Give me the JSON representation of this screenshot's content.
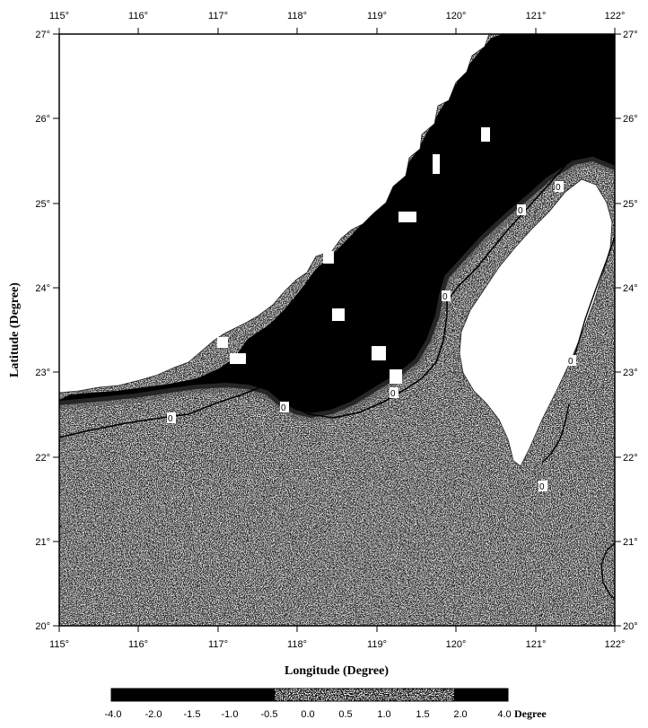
{
  "map": {
    "x_axis": {
      "title": "Longitude (Degree)",
      "ticks": [
        "115°",
        "116°",
        "117°",
        "118°",
        "119°",
        "120°",
        "121°",
        "122°"
      ]
    },
    "y_axis": {
      "title": "Latitude (Degree)",
      "ticks": [
        "20°",
        "21°",
        "22°",
        "23°",
        "24°",
        "25°",
        "26°",
        "27°"
      ]
    },
    "contour_labels": [
      "0",
      "0",
      "0",
      "0",
      "0",
      "0",
      "0",
      "0"
    ],
    "shading": "noise raster: dark (negative) over coastal China shelf, light speckle in South China Sea",
    "colors": {
      "dark": "#000000",
      "light": "#ffffff",
      "noise": "#7a7a7a"
    }
  },
  "colorbar": {
    "labels": [
      "-4.0",
      "-2.0",
      "-1.5",
      "-1.0",
      "-0.5",
      "0.0",
      "0.5",
      "1.0",
      "1.5",
      "2.0",
      "4.0"
    ],
    "unit": "Degree"
  }
}
